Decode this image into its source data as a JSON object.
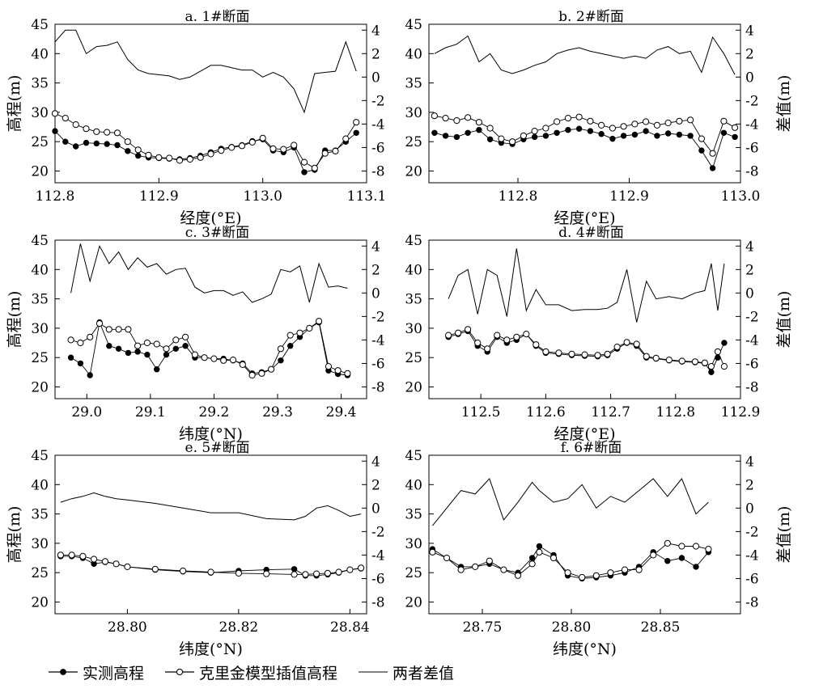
{
  "chart_data": [
    {
      "panel": "a",
      "type": "line",
      "title": "a. 1#断面",
      "xlabel": "经度(°E)",
      "ylabel": "高程(m)",
      "y2label": "",
      "xlim": [
        112.8,
        113.1
      ],
      "xticks": [
        112.8,
        112.9,
        113.0,
        113.1
      ],
      "xtick_labels": [
        "112.8",
        "112.9",
        "113.0",
        "113.1"
      ],
      "ylim": [
        18,
        45
      ],
      "yticks": [
        20,
        25,
        30,
        35,
        40,
        45
      ],
      "y2lim": [
        -9,
        4.5
      ],
      "y2ticks": [
        -8,
        -6,
        -4,
        -2,
        0,
        2,
        4
      ],
      "x": [
        112.8,
        112.81,
        112.82,
        112.83,
        112.84,
        112.85,
        112.86,
        112.87,
        112.88,
        112.89,
        112.9,
        112.91,
        112.92,
        112.93,
        112.94,
        112.95,
        112.96,
        112.97,
        112.98,
        112.99,
        113.0,
        113.01,
        113.02,
        113.03,
        113.04,
        113.05,
        113.06,
        113.07,
        113.08,
        113.09
      ],
      "series": [
        {
          "name": "实测高程",
          "axis": "left",
          "marker": "filled",
          "values": [
            26.8,
            25.0,
            24.2,
            24.8,
            24.7,
            24.6,
            24.4,
            23.4,
            22.6,
            22.3,
            22.2,
            22.1,
            22.0,
            22.2,
            22.6,
            23.2,
            23.8,
            24.1,
            24.4,
            25.1,
            25.4,
            23.5,
            23.2,
            24.0,
            19.8,
            20.2,
            23.5,
            23.5,
            25.0,
            26.5
          ]
        },
        {
          "name": "克里金模型插值高程",
          "axis": "left",
          "marker": "open",
          "values": [
            29.8,
            29.0,
            27.9,
            27.2,
            26.7,
            26.6,
            26.5,
            25.0,
            23.6,
            22.7,
            22.3,
            22.2,
            21.8,
            22.0,
            22.3,
            22.9,
            23.5,
            24.0,
            24.3,
            24.9,
            25.6,
            23.8,
            23.7,
            24.4,
            21.5,
            20.5,
            23.0,
            23.4,
            25.5,
            28.3
          ]
        },
        {
          "name": "两者差值",
          "axis": "right",
          "marker": "none",
          "values": [
            3.0,
            4.0,
            4.0,
            2.0,
            2.6,
            2.7,
            3.0,
            1.5,
            0.6,
            0.3,
            0.2,
            0.1,
            -0.2,
            0.0,
            0.5,
            1.0,
            1.0,
            0.8,
            0.6,
            0.6,
            0.0,
            0.4,
            0.0,
            -1.0,
            -3.0,
            0.3,
            0.4,
            0.5,
            3.0,
            0.5
          ]
        }
      ]
    },
    {
      "panel": "b",
      "type": "line",
      "title": "b. 2#断面",
      "xlabel": "经度(°E)",
      "ylabel": "",
      "y2label": "差值(m)",
      "xlim": [
        112.72,
        113.0
      ],
      "xticks": [
        112.8,
        112.9,
        113.0
      ],
      "xtick_labels": [
        "112.8",
        "112.9",
        "113.0"
      ],
      "ylim": [
        18,
        45
      ],
      "yticks": [
        20,
        25,
        30,
        35,
        40,
        45
      ],
      "y2lim": [
        -9,
        4.5
      ],
      "y2ticks": [
        -8,
        -6,
        -4,
        -2,
        0,
        2,
        4
      ],
      "x": [
        112.725,
        112.735,
        112.745,
        112.755,
        112.765,
        112.775,
        112.785,
        112.795,
        112.805,
        112.815,
        112.825,
        112.835,
        112.845,
        112.855,
        112.865,
        112.875,
        112.885,
        112.895,
        112.905,
        112.915,
        112.925,
        112.935,
        112.945,
        112.955,
        112.965,
        112.975,
        112.985,
        112.995
      ],
      "series": [
        {
          "name": "实测高程",
          "axis": "left",
          "marker": "filled",
          "values": [
            26.5,
            26.0,
            25.8,
            26.5,
            27.0,
            25.4,
            24.8,
            24.6,
            25.4,
            25.8,
            26.0,
            26.5,
            27.0,
            27.2,
            26.8,
            26.3,
            25.5,
            26.0,
            26.2,
            26.8,
            26.0,
            26.4,
            26.2,
            26.0,
            23.5,
            20.5,
            26.5,
            25.8
          ]
        },
        {
          "name": "克里金模型插值高程",
          "axis": "left",
          "marker": "open",
          "values": [
            29.4,
            29.0,
            28.6,
            29.1,
            28.3,
            27.3,
            25.5,
            25.0,
            26.0,
            26.8,
            27.3,
            28.4,
            29.0,
            29.2,
            28.5,
            27.8,
            27.3,
            27.6,
            28.0,
            28.4,
            27.8,
            28.2,
            28.5,
            28.7,
            25.5,
            23.0,
            28.5,
            27.4
          ]
        },
        {
          "name": "两者差值",
          "axis": "right",
          "marker": "none",
          "values": [
            2.0,
            2.5,
            2.8,
            3.5,
            1.3,
            2.0,
            0.6,
            0.3,
            0.6,
            1.0,
            1.3,
            2.0,
            2.3,
            2.5,
            2.2,
            2.0,
            1.8,
            1.6,
            1.8,
            1.6,
            2.3,
            2.6,
            2.0,
            2.2,
            0.4,
            3.4,
            2.0,
            0.2
          ]
        }
      ]
    },
    {
      "panel": "c",
      "type": "line",
      "title": "c. 3#断面",
      "xlabel": "纬度(°N)",
      "ylabel": "高程(m)",
      "y2label": "",
      "xlim": [
        28.95,
        29.44
      ],
      "xticks": [
        29.0,
        29.1,
        29.2,
        29.3,
        29.4
      ],
      "xtick_labels": [
        "29.0",
        "29.1",
        "29.2",
        "29.3",
        "29.4"
      ],
      "ylim": [
        18,
        45
      ],
      "yticks": [
        20,
        25,
        30,
        35,
        40,
        45
      ],
      "y2lim": [
        -9,
        4.5
      ],
      "y2ticks": [
        -8,
        -6,
        -4,
        -2,
        0,
        2,
        4
      ],
      "x": [
        28.975,
        28.99,
        29.005,
        29.02,
        29.035,
        29.05,
        29.065,
        29.08,
        29.095,
        29.11,
        29.125,
        29.14,
        29.155,
        29.17,
        29.185,
        29.2,
        29.215,
        29.23,
        29.245,
        29.26,
        29.275,
        29.29,
        29.305,
        29.32,
        29.335,
        29.35,
        29.365,
        29.38,
        29.395,
        29.41
      ],
      "series": [
        {
          "name": "实测高程",
          "axis": "left",
          "marker": "filled",
          "values": [
            25.0,
            24.0,
            22.0,
            31.0,
            27.0,
            26.5,
            25.8,
            26.0,
            25.5,
            23.0,
            25.5,
            26.5,
            27.0,
            25.0,
            25.0,
            24.8,
            24.8,
            24.5,
            24.0,
            22.3,
            22.5,
            23.0,
            24.5,
            27.0,
            28.5,
            30.0,
            31.0,
            22.8,
            22.2,
            22.0
          ]
        },
        {
          "name": "克里金模型插值高程",
          "axis": "left",
          "marker": "open",
          "values": [
            28.0,
            27.5,
            28.5,
            30.8,
            29.8,
            29.8,
            29.8,
            27.0,
            27.5,
            27.3,
            26.5,
            28.0,
            28.5,
            25.5,
            25.0,
            24.8,
            24.5,
            24.6,
            23.8,
            22.0,
            22.3,
            23.0,
            26.5,
            28.8,
            29.2,
            30.0,
            31.2,
            23.5,
            22.8,
            22.3
          ]
        },
        {
          "name": "两者差值",
          "axis": "right",
          "marker": "none",
          "values": [
            0.0,
            4.2,
            1.0,
            4.0,
            2.5,
            3.5,
            2.0,
            3.0,
            2.2,
            2.5,
            1.6,
            2.0,
            2.1,
            0.5,
            0.0,
            0.2,
            0.2,
            -0.2,
            0.1,
            -0.8,
            -0.5,
            -0.1,
            2.0,
            1.8,
            2.3,
            -0.8,
            2.5,
            0.5,
            0.6,
            0.4
          ]
        }
      ]
    },
    {
      "panel": "d",
      "type": "line",
      "title": "d. 4#断面",
      "xlabel": "经度(°E)",
      "ylabel": "",
      "y2label": "差值(m)",
      "xlim": [
        112.42,
        112.9
      ],
      "xticks": [
        112.5,
        112.6,
        112.7,
        112.8,
        112.9
      ],
      "xtick_labels": [
        "112.5",
        "112.6",
        "112.7",
        "112.8",
        "112.9"
      ],
      "ylim": [
        18,
        45
      ],
      "yticks": [
        20,
        25,
        30,
        35,
        40,
        45
      ],
      "y2lim": [
        -9,
        4.5
      ],
      "y2ticks": [
        -8,
        -6,
        -4,
        -2,
        0,
        2,
        4
      ],
      "x": [
        112.45,
        112.465,
        112.48,
        112.495,
        112.51,
        112.525,
        112.54,
        112.555,
        112.57,
        112.585,
        112.6,
        112.62,
        112.64,
        112.66,
        112.68,
        112.695,
        112.71,
        112.725,
        112.74,
        112.755,
        112.77,
        112.79,
        112.81,
        112.83,
        112.845,
        112.855,
        112.865,
        112.875
      ],
      "series": [
        {
          "name": "实测高程",
          "axis": "left",
          "marker": "filled",
          "values": [
            28.5,
            29.0,
            29.5,
            27.0,
            26.0,
            28.5,
            27.5,
            28.0,
            29.0,
            27.0,
            25.8,
            25.6,
            25.4,
            25.3,
            25.2,
            25.4,
            26.5,
            27.5,
            27.0,
            25.0,
            24.8,
            24.5,
            24.3,
            24.2,
            24.0,
            22.5,
            25.0,
            27.5
          ]
        },
        {
          "name": "克里金模型插值高程",
          "axis": "left",
          "marker": "open",
          "values": [
            28.8,
            29.2,
            29.8,
            27.5,
            26.5,
            28.8,
            28.0,
            28.5,
            29.0,
            27.2,
            26.0,
            25.8,
            25.6,
            25.5,
            25.4,
            25.6,
            26.8,
            27.6,
            27.3,
            25.2,
            24.9,
            24.6,
            24.4,
            24.3,
            24.1,
            23.5,
            26.0,
            23.5
          ]
        },
        {
          "name": "两者差值",
          "axis": "right",
          "marker": "none",
          "values": [
            -0.5,
            1.5,
            2.0,
            -1.8,
            2.0,
            1.5,
            -2.0,
            3.8,
            -1.5,
            0.3,
            -1.0,
            -1.0,
            -1.5,
            -1.4,
            -1.4,
            -1.3,
            -0.8,
            2.0,
            -2.5,
            1.0,
            -0.5,
            -0.3,
            -0.5,
            0.0,
            0.2,
            2.5,
            -1.5,
            2.5
          ]
        }
      ]
    },
    {
      "panel": "e",
      "type": "line",
      "title": "e. 5#断面",
      "xlabel": "纬度(°N)",
      "ylabel": "高程(m)",
      "y2label": "",
      "xlim": [
        28.787,
        28.843
      ],
      "xticks": [
        28.8,
        28.82,
        28.84
      ],
      "xtick_labels": [
        "28.80",
        "28.82",
        "28.84"
      ],
      "ylim": [
        18,
        45
      ],
      "yticks": [
        20,
        25,
        30,
        35,
        40,
        45
      ],
      "y2lim": [
        -9,
        4.5
      ],
      "y2ticks": [
        -8,
        -6,
        -4,
        -2,
        0,
        2,
        4
      ],
      "x": [
        28.788,
        28.79,
        28.792,
        28.794,
        28.796,
        28.798,
        28.8,
        28.805,
        28.81,
        28.815,
        28.82,
        28.825,
        28.83,
        28.832,
        28.834,
        28.836,
        28.838,
        28.84,
        28.842
      ],
      "series": [
        {
          "name": "实测高程",
          "axis": "left",
          "marker": "filled",
          "values": [
            27.8,
            27.8,
            27.5,
            26.5,
            26.8,
            26.5,
            26.0,
            25.5,
            25.2,
            25.0,
            25.3,
            25.5,
            25.6,
            24.5,
            24.5,
            24.7,
            25.0,
            25.5,
            25.7
          ]
        },
        {
          "name": "克里金模型插值高程",
          "axis": "left",
          "marker": "open",
          "values": [
            28.0,
            28.0,
            27.8,
            27.3,
            26.9,
            26.5,
            26.0,
            25.6,
            25.3,
            25.1,
            24.9,
            24.8,
            24.7,
            24.7,
            24.8,
            24.9,
            25.1,
            25.5,
            25.8
          ]
        },
        {
          "name": "两者差值",
          "axis": "right",
          "marker": "none",
          "values": [
            0.5,
            0.8,
            1.0,
            1.3,
            1.0,
            0.8,
            0.7,
            0.4,
            0.0,
            -0.4,
            -0.4,
            -0.9,
            -1.0,
            -0.7,
            0.0,
            0.2,
            -0.2,
            -0.7,
            -0.5
          ]
        }
      ]
    },
    {
      "panel": "f",
      "type": "line",
      "title": "f. 6#断面",
      "xlabel": "纬度(°N)",
      "ylabel": "",
      "y2label": "差值(m)",
      "xlim": [
        28.72,
        28.895
      ],
      "xticks": [
        28.75,
        28.8,
        28.85
      ],
      "xtick_labels": [
        "28.75",
        "28.80",
        "28.85"
      ],
      "ylim": [
        18,
        45
      ],
      "yticks": [
        20,
        25,
        30,
        35,
        40,
        45
      ],
      "y2lim": [
        -9,
        4.5
      ],
      "y2ticks": [
        -8,
        -6,
        -4,
        -2,
        0,
        2,
        4
      ],
      "x": [
        28.722,
        28.73,
        28.738,
        28.746,
        28.754,
        28.762,
        28.77,
        28.778,
        28.782,
        28.79,
        28.798,
        28.806,
        28.814,
        28.822,
        28.83,
        28.838,
        28.846,
        28.854,
        28.862,
        28.87,
        28.877
      ],
      "series": [
        {
          "name": "实测高程",
          "axis": "left",
          "marker": "filled",
          "values": [
            29.0,
            27.5,
            26.0,
            26.0,
            26.5,
            25.5,
            25.0,
            27.5,
            29.5,
            28.0,
            24.5,
            24.0,
            24.2,
            24.5,
            25.0,
            26.0,
            28.5,
            27.0,
            27.5,
            26.0,
            28.5
          ]
        },
        {
          "name": "克里金模型插值高程",
          "axis": "left",
          "marker": "open",
          "values": [
            28.5,
            27.5,
            25.5,
            26.0,
            27.0,
            25.5,
            24.5,
            26.5,
            28.5,
            27.5,
            25.0,
            24.2,
            24.5,
            25.0,
            25.5,
            25.5,
            28.0,
            30.0,
            29.5,
            29.5,
            29.0
          ]
        },
        {
          "name": "两者差值",
          "axis": "right",
          "marker": "none",
          "values": [
            -1.5,
            0.0,
            1.5,
            1.2,
            2.5,
            -1.0,
            0.5,
            2.2,
            1.5,
            0.5,
            0.8,
            2.0,
            0.0,
            1.0,
            0.5,
            1.5,
            2.5,
            1.0,
            2.5,
            -0.5,
            0.5
          ]
        }
      ]
    }
  ],
  "legend": {
    "measured": "实测高程",
    "kriging": "克里金模型插值高程",
    "difference": "两者差值"
  }
}
